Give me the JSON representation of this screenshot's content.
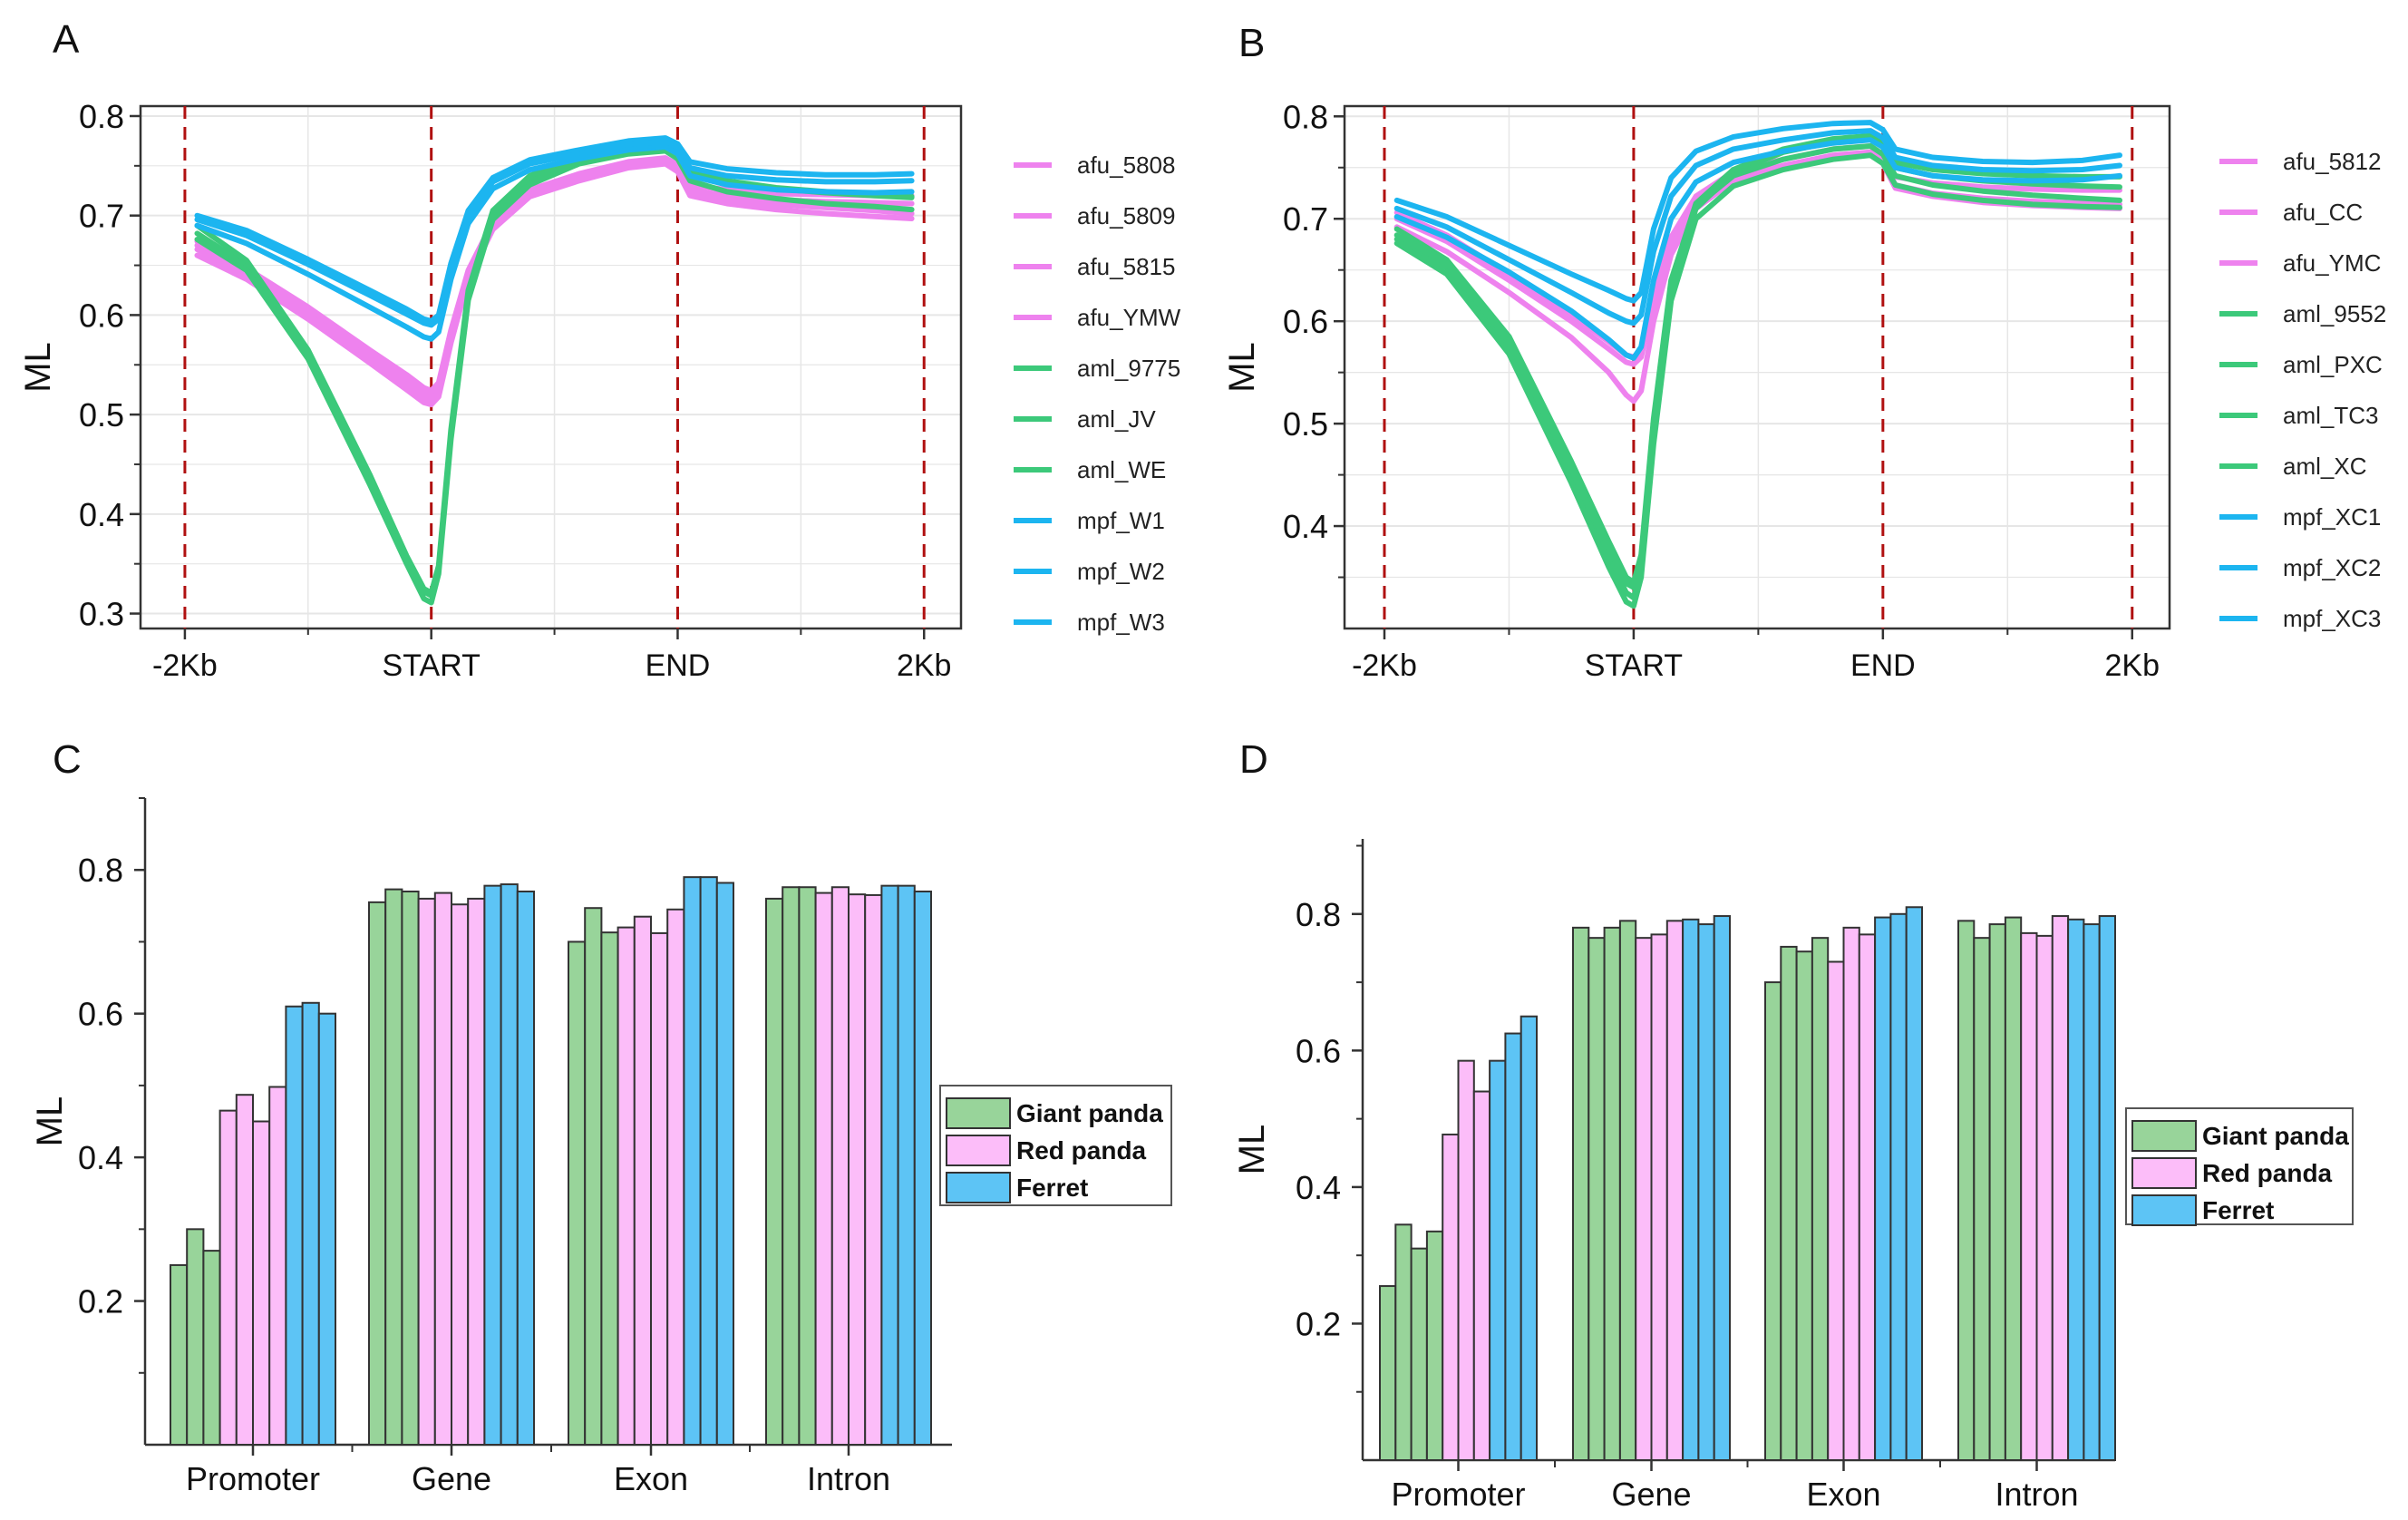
{
  "colors": {
    "afu": "#ee82ee",
    "aml": "#3cc97a",
    "mpf": "#1cb5f0",
    "giant_panda": "#98d49a",
    "red_panda": "#fcbdf9",
    "ferret": "#5dc4f5",
    "guide": "#b01010",
    "grid": "#e6e6e6"
  },
  "chart_data": [
    {
      "type": "line",
      "panel_label": "A",
      "ylabel": "ML",
      "xlabel": "",
      "ylim": [
        0.285,
        0.81
      ],
      "yticks": [
        0.3,
        0.4,
        0.5,
        0.6,
        0.7,
        0.8
      ],
      "ytick_labels": [
        "0.3",
        "0.4",
        "0.5",
        "0.6",
        "0.7",
        "0.8"
      ],
      "xlim": [
        -0.18,
        3.15
      ],
      "xticks": [
        0,
        1,
        2,
        3
      ],
      "xtick_labels": [
        "-2Kb",
        "START",
        "END",
        "2Kb"
      ],
      "x": [
        0.05,
        0.25,
        0.5,
        0.75,
        0.9,
        0.97,
        1.0,
        1.03,
        1.08,
        1.15,
        1.25,
        1.4,
        1.6,
        1.8,
        1.95,
        2.0,
        2.05,
        2.2,
        2.4,
        2.6,
        2.8,
        2.95
      ],
      "series": [
        {
          "name": "afu_5808",
          "group": "afu",
          "values": [
            0.67,
            0.643,
            0.603,
            0.56,
            0.535,
            0.522,
            0.52,
            0.528,
            0.58,
            0.64,
            0.69,
            0.722,
            0.738,
            0.75,
            0.753,
            0.745,
            0.725,
            0.717,
            0.711,
            0.708,
            0.705,
            0.702
          ]
        },
        {
          "name": "afu_5809",
          "group": "afu",
          "values": [
            0.66,
            0.636,
            0.596,
            0.552,
            0.525,
            0.512,
            0.51,
            0.518,
            0.572,
            0.636,
            0.686,
            0.719,
            0.735,
            0.748,
            0.752,
            0.744,
            0.72,
            0.712,
            0.706,
            0.702,
            0.699,
            0.697
          ]
        },
        {
          "name": "afu_5815",
          "group": "afu",
          "values": [
            0.666,
            0.64,
            0.6,
            0.556,
            0.53,
            0.517,
            0.515,
            0.523,
            0.576,
            0.638,
            0.688,
            0.721,
            0.737,
            0.75,
            0.754,
            0.747,
            0.726,
            0.72,
            0.716,
            0.714,
            0.713,
            0.712
          ]
        },
        {
          "name": "afu_YMW",
          "group": "afu",
          "values": [
            0.674,
            0.647,
            0.608,
            0.565,
            0.54,
            0.527,
            0.524,
            0.532,
            0.585,
            0.645,
            0.694,
            0.726,
            0.742,
            0.754,
            0.758,
            0.751,
            0.731,
            0.726,
            0.722,
            0.721,
            0.72,
            0.72
          ]
        },
        {
          "name": "aml_9775",
          "group": "aml",
          "values": [
            0.682,
            0.65,
            0.56,
            0.435,
            0.355,
            0.322,
            0.318,
            0.345,
            0.48,
            0.62,
            0.7,
            0.735,
            0.755,
            0.765,
            0.768,
            0.76,
            0.742,
            0.733,
            0.727,
            0.723,
            0.72,
            0.718
          ]
        },
        {
          "name": "aml_JV",
          "group": "aml",
          "values": [
            0.69,
            0.655,
            0.565,
            0.44,
            0.358,
            0.325,
            0.321,
            0.348,
            0.485,
            0.625,
            0.705,
            0.74,
            0.76,
            0.77,
            0.772,
            0.764,
            0.745,
            0.735,
            0.728,
            0.724,
            0.721,
            0.719
          ]
        },
        {
          "name": "aml_WE",
          "group": "aml",
          "values": [
            0.676,
            0.645,
            0.556,
            0.43,
            0.35,
            0.315,
            0.311,
            0.34,
            0.475,
            0.615,
            0.696,
            0.731,
            0.752,
            0.762,
            0.765,
            0.757,
            0.735,
            0.724,
            0.717,
            0.712,
            0.709,
            0.706
          ]
        },
        {
          "name": "mpf_W1",
          "group": "mpf",
          "values": [
            0.7,
            0.685,
            0.656,
            0.625,
            0.606,
            0.596,
            0.594,
            0.6,
            0.652,
            0.705,
            0.738,
            0.756,
            0.766,
            0.775,
            0.778,
            0.772,
            0.754,
            0.747,
            0.743,
            0.741,
            0.741,
            0.742
          ]
        },
        {
          "name": "mpf_W2",
          "group": "mpf",
          "values": [
            0.696,
            0.68,
            0.651,
            0.62,
            0.601,
            0.592,
            0.59,
            0.596,
            0.648,
            0.701,
            0.734,
            0.752,
            0.762,
            0.771,
            0.774,
            0.768,
            0.748,
            0.74,
            0.736,
            0.734,
            0.734,
            0.735
          ]
        },
        {
          "name": "mpf_W3",
          "group": "mpf",
          "values": [
            0.69,
            0.672,
            0.641,
            0.608,
            0.588,
            0.578,
            0.576,
            0.583,
            0.636,
            0.692,
            0.727,
            0.746,
            0.757,
            0.766,
            0.769,
            0.762,
            0.74,
            0.731,
            0.726,
            0.724,
            0.723,
            0.724
          ]
        }
      ]
    },
    {
      "type": "line",
      "panel_label": "B",
      "ylabel": "ML",
      "xlabel": "",
      "ylim": [
        0.3,
        0.81
      ],
      "yticks": [
        0.4,
        0.5,
        0.6,
        0.7,
        0.8
      ],
      "ytick_labels": [
        "0.4",
        "0.5",
        "0.6",
        "0.7",
        "0.8"
      ],
      "xlim": [
        -0.16,
        3.15
      ],
      "xticks": [
        0,
        1,
        2,
        3
      ],
      "xtick_labels": [
        "-2Kb",
        "START",
        "END",
        "2Kb"
      ],
      "x": [
        0.05,
        0.25,
        0.5,
        0.75,
        0.9,
        0.97,
        1.0,
        1.03,
        1.08,
        1.15,
        1.25,
        1.4,
        1.6,
        1.8,
        1.95,
        2.0,
        2.05,
        2.2,
        2.4,
        2.6,
        2.8,
        2.95
      ],
      "series": [
        {
          "name": "afu_5812",
          "group": "afu",
          "values": [
            0.7,
            0.678,
            0.64,
            0.6,
            0.573,
            0.56,
            0.558,
            0.565,
            0.62,
            0.675,
            0.715,
            0.74,
            0.752,
            0.762,
            0.765,
            0.757,
            0.733,
            0.725,
            0.72,
            0.717,
            0.715,
            0.714
          ]
        },
        {
          "name": "afu_CC",
          "group": "afu",
          "values": [
            0.692,
            0.668,
            0.628,
            0.584,
            0.55,
            0.528,
            0.522,
            0.532,
            0.6,
            0.665,
            0.71,
            0.737,
            0.75,
            0.76,
            0.763,
            0.754,
            0.73,
            0.722,
            0.716,
            0.713,
            0.711,
            0.71
          ]
        },
        {
          "name": "afu_YMC",
          "group": "afu",
          "values": [
            0.706,
            0.684,
            0.646,
            0.606,
            0.58,
            0.567,
            0.565,
            0.572,
            0.627,
            0.682,
            0.722,
            0.746,
            0.758,
            0.768,
            0.771,
            0.763,
            0.741,
            0.735,
            0.731,
            0.729,
            0.728,
            0.728
          ]
        },
        {
          "name": "aml_9552",
          "group": "aml",
          "values": [
            0.68,
            0.652,
            0.575,
            0.45,
            0.37,
            0.335,
            0.33,
            0.358,
            0.49,
            0.63,
            0.71,
            0.745,
            0.765,
            0.775,
            0.778,
            0.77,
            0.75,
            0.742,
            0.737,
            0.734,
            0.732,
            0.731
          ]
        },
        {
          "name": "aml_PXC",
          "group": "aml",
          "values": [
            0.69,
            0.66,
            0.585,
            0.463,
            0.385,
            0.35,
            0.345,
            0.372,
            0.505,
            0.64,
            0.715,
            0.748,
            0.768,
            0.778,
            0.781,
            0.773,
            0.755,
            0.748,
            0.744,
            0.742,
            0.741,
            0.741
          ]
        },
        {
          "name": "aml_TC3",
          "group": "aml",
          "values": [
            0.676,
            0.646,
            0.568,
            0.442,
            0.36,
            0.326,
            0.322,
            0.35,
            0.48,
            0.62,
            0.7,
            0.732,
            0.748,
            0.758,
            0.762,
            0.754,
            0.733,
            0.724,
            0.718,
            0.714,
            0.712,
            0.711
          ]
        },
        {
          "name": "aml_XC",
          "group": "aml",
          "values": [
            0.684,
            0.656,
            0.58,
            0.456,
            0.378,
            0.344,
            0.34,
            0.367,
            0.498,
            0.635,
            0.712,
            0.742,
            0.758,
            0.768,
            0.771,
            0.763,
            0.742,
            0.733,
            0.727,
            0.723,
            0.72,
            0.718
          ]
        },
        {
          "name": "mpf_XC1",
          "group": "mpf",
          "values": [
            0.718,
            0.702,
            0.674,
            0.646,
            0.63,
            0.622,
            0.62,
            0.628,
            0.69,
            0.74,
            0.766,
            0.78,
            0.788,
            0.793,
            0.794,
            0.787,
            0.768,
            0.76,
            0.756,
            0.755,
            0.757,
            0.762
          ]
        },
        {
          "name": "mpf_XC2",
          "group": "mpf",
          "values": [
            0.71,
            0.692,
            0.66,
            0.628,
            0.608,
            0.6,
            0.598,
            0.606,
            0.668,
            0.722,
            0.752,
            0.768,
            0.777,
            0.784,
            0.786,
            0.779,
            0.76,
            0.752,
            0.748,
            0.747,
            0.748,
            0.752
          ]
        },
        {
          "name": "mpf_XC3",
          "group": "mpf",
          "values": [
            0.702,
            0.682,
            0.648,
            0.61,
            0.582,
            0.567,
            0.564,
            0.575,
            0.64,
            0.7,
            0.736,
            0.755,
            0.766,
            0.774,
            0.777,
            0.77,
            0.75,
            0.742,
            0.738,
            0.737,
            0.738,
            0.742
          ]
        }
      ]
    },
    {
      "type": "bar",
      "panel_label": "C",
      "ylabel": "ML",
      "xlabel": "",
      "ylim": [
        0.0,
        0.9
      ],
      "yticks": [
        0.2,
        0.4,
        0.6,
        0.8
      ],
      "ytick_labels": [
        "0.2",
        "0.4",
        "0.6",
        "0.8"
      ],
      "categories": [
        "Promoter",
        "Gene",
        "Exon",
        "Intron"
      ],
      "legend": [
        {
          "name": "Giant panda",
          "group": "giant_panda"
        },
        {
          "name": "Red panda",
          "group": "red_panda"
        },
        {
          "name": "Ferret",
          "group": "ferret"
        }
      ],
      "bar_groups": [
        "giant_panda",
        "giant_panda",
        "giant_panda",
        "red_panda",
        "red_panda",
        "red_panda",
        "red_panda",
        "ferret",
        "ferret",
        "ferret"
      ],
      "values": [
        [
          0.25,
          0.3,
          0.27,
          0.465,
          0.487,
          0.45,
          0.498,
          0.61,
          0.615,
          0.6
        ],
        [
          0.755,
          0.773,
          0.77,
          0.76,
          0.768,
          0.752,
          0.76,
          0.778,
          0.78,
          0.77
        ],
        [
          0.7,
          0.747,
          0.713,
          0.72,
          0.735,
          0.712,
          0.745,
          0.79,
          0.79,
          0.782
        ],
        [
          0.76,
          0.776,
          0.776,
          0.768,
          0.776,
          0.766,
          0.765,
          0.778,
          0.778,
          0.77
        ]
      ]
    },
    {
      "type": "bar",
      "panel_label": "D",
      "ylabel": "ML",
      "xlabel": "",
      "ylim": [
        0.0,
        0.91
      ],
      "yticks": [
        0.2,
        0.4,
        0.6,
        0.8
      ],
      "ytick_labels": [
        "0.2",
        "0.4",
        "0.6",
        "0.8"
      ],
      "categories": [
        "Promoter",
        "Gene",
        "Exon",
        "Intron"
      ],
      "legend": [
        {
          "name": "Giant panda",
          "group": "giant_panda"
        },
        {
          "name": "Red panda",
          "group": "red_panda"
        },
        {
          "name": "Ferret",
          "group": "ferret"
        }
      ],
      "bar_groups": [
        "giant_panda",
        "giant_panda",
        "giant_panda",
        "giant_panda",
        "red_panda",
        "red_panda",
        "red_panda",
        "ferret",
        "ferret",
        "ferret"
      ],
      "values": [
        [
          0.255,
          0.345,
          0.31,
          0.335,
          0.477,
          0.585,
          0.54,
          0.585,
          0.625,
          0.65
        ],
        [
          0.78,
          0.765,
          0.78,
          0.79,
          0.765,
          0.77,
          0.79,
          0.792,
          0.785,
          0.797
        ],
        [
          0.7,
          0.752,
          0.745,
          0.765,
          0.73,
          0.78,
          0.77,
          0.795,
          0.8,
          0.81
        ],
        [
          0.79,
          0.765,
          0.785,
          0.795,
          0.772,
          0.768,
          0.797,
          0.792,
          0.785,
          0.797
        ]
      ]
    }
  ]
}
